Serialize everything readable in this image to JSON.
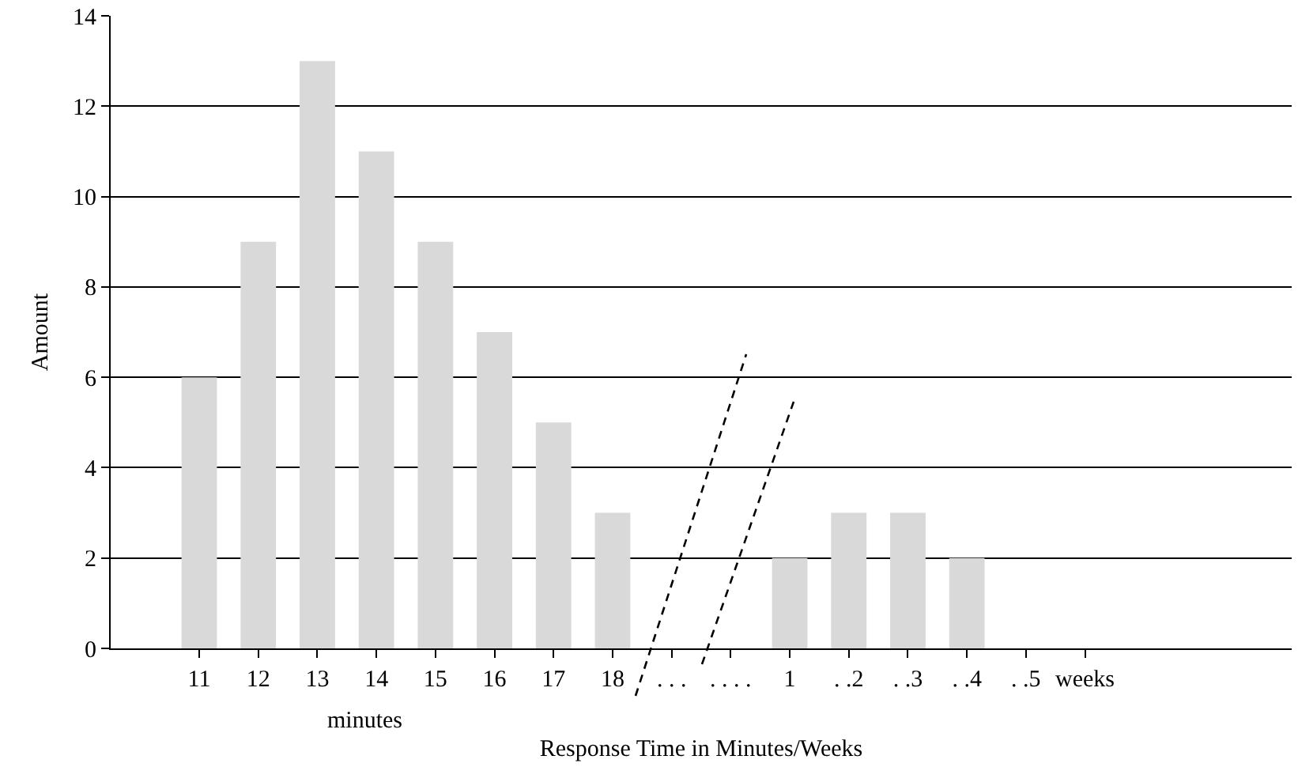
{
  "chart_data": {
    "type": "bar",
    "xlabel": "Response Time in Minutes/Weeks",
    "ylabel": "Amount",
    "categories": [
      null,
      "11",
      "12",
      "13",
      "14",
      "15",
      "16",
      "17",
      "18",
      ". . .",
      ". . . .",
      "1",
      ". .2",
      ". .3",
      ". .4",
      ". .5",
      "weeks",
      null,
      null,
      null
    ],
    "values": [
      0,
      6,
      9,
      13,
      11,
      9,
      7,
      5,
      3,
      0,
      0,
      2,
      3,
      3,
      2,
      0,
      0,
      0,
      0,
      0
    ],
    "color": "#d9d9d9",
    "ylim": [
      0,
      14
    ],
    "yticks": [
      0,
      2,
      4,
      6,
      8,
      10,
      12,
      14
    ],
    "grid": "y",
    "annotations": [
      "minutes"
    ]
  }
}
